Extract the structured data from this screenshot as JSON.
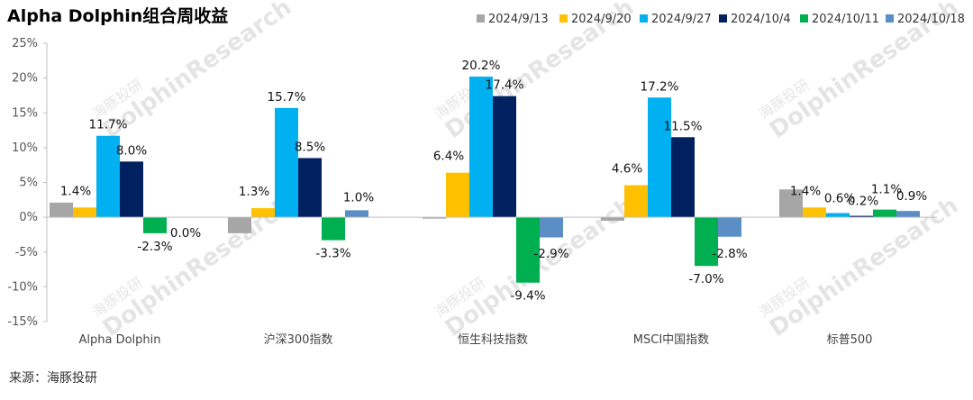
{
  "chart_data": {
    "type": "bar",
    "title": "Alpha Dolphin组合周收益",
    "categories": [
      "Alpha Dolphin",
      "沪深300指数",
      "恒生科技指数",
      "MSCI中国指数",
      "标普500"
    ],
    "series": [
      {
        "name": "2024/9/13",
        "color": "#a6a6a6",
        "values": [
          2.1,
          -2.3,
          -0.2,
          -0.5,
          4.0
        ],
        "labels": [
          "",
          "",
          "",
          "",
          ""
        ]
      },
      {
        "name": "2024/9/20",
        "color": "#ffc000",
        "values": [
          1.4,
          1.3,
          6.4,
          4.6,
          1.4
        ],
        "labels": [
          "1.4%",
          "1.3%",
          "6.4%",
          "4.6%",
          "1.4%"
        ]
      },
      {
        "name": "2024/9/27",
        "color": "#00b0f0",
        "values": [
          11.7,
          15.7,
          20.2,
          17.2,
          0.6
        ],
        "labels": [
          "11.7%",
          "15.7%",
          "20.2%",
          "17.2%",
          "0.6%"
        ]
      },
      {
        "name": "2024/10/4",
        "color": "#002060",
        "values": [
          8.0,
          8.5,
          17.4,
          11.5,
          0.2
        ],
        "labels": [
          "8.0%",
          "8.5%",
          "17.4%",
          "11.5%",
          "0.2%"
        ]
      },
      {
        "name": "2024/10/11",
        "color": "#00b050",
        "values": [
          -2.3,
          -3.3,
          -9.4,
          -7.0,
          1.1
        ],
        "labels": [
          "-2.3%",
          "-3.3%",
          "-9.4%",
          "-7.0%",
          "1.1%"
        ]
      },
      {
        "name": "2024/10/18",
        "color": "#5b8ec4",
        "values": [
          0.0,
          1.0,
          -2.9,
          -2.8,
          0.9
        ],
        "labels": [
          "0.0%",
          "1.0%",
          "-2.9%",
          "-2.8%",
          "0.9%"
        ]
      }
    ],
    "ylim": [
      -15,
      25
    ],
    "yticks": [
      "-15%",
      "-10%",
      "-5%",
      "0%",
      "5%",
      "10%",
      "15%",
      "20%",
      "25%"
    ],
    "ytick_values": [
      -15,
      -10,
      -5,
      0,
      5,
      10,
      15,
      20,
      25
    ],
    "legend_position": "top-right",
    "grid": false
  },
  "source": "来源：海豚投研",
  "watermarks": [
    "海豚投研",
    "DolphinResearch"
  ]
}
